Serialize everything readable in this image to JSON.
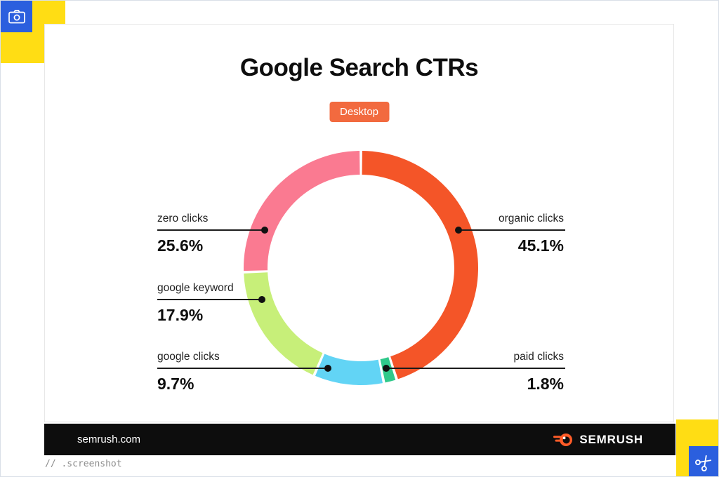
{
  "page": {
    "title": "Google Search CTRs",
    "badge_label": "Desktop",
    "caption": "// .screenshot"
  },
  "footer": {
    "site": "semrush.com",
    "brand": "SEMRUSH"
  },
  "colors": {
    "badge_orange": "#F26A3F",
    "segment_orange": "#F45528",
    "segment_pink": "#FA7A91",
    "segment_lime": "#C7EF79",
    "segment_cyan": "#62D4F5",
    "segment_green": "#30C98B",
    "corner_yellow": "#FFDD14",
    "corner_blue": "#2B5FDE",
    "footer_black": "#0D0D0D"
  },
  "chart_data": {
    "type": "pie",
    "donut": true,
    "title": "Google Search CTRs",
    "subtitle": "Desktop",
    "unit": "%",
    "start_angle_deg": 0,
    "direction": "clockwise",
    "legend_position": "callout-labels",
    "segments": [
      {
        "label": "organic clicks",
        "value": 45.1,
        "color": "#F45528"
      },
      {
        "label": "paid clicks",
        "value": 1.8,
        "color": "#30C98B"
      },
      {
        "label": "google clicks",
        "value": 9.7,
        "color": "#62D4F5"
      },
      {
        "label": "google keyword",
        "value": 17.9,
        "color": "#C7EF79"
      },
      {
        "label": "zero clicks",
        "value": 25.6,
        "color": "#FA7A91"
      }
    ]
  },
  "callouts": {
    "zero": {
      "label": "zero clicks",
      "value": "25.6%"
    },
    "keyword": {
      "label": "google keyword",
      "value": "17.9%"
    },
    "gclicks": {
      "label": "google clicks",
      "value": "9.7%"
    },
    "organic": {
      "label": "organic clicks",
      "value": "45.1%"
    },
    "paid": {
      "label": "paid clicks",
      "value": "1.8%"
    }
  }
}
